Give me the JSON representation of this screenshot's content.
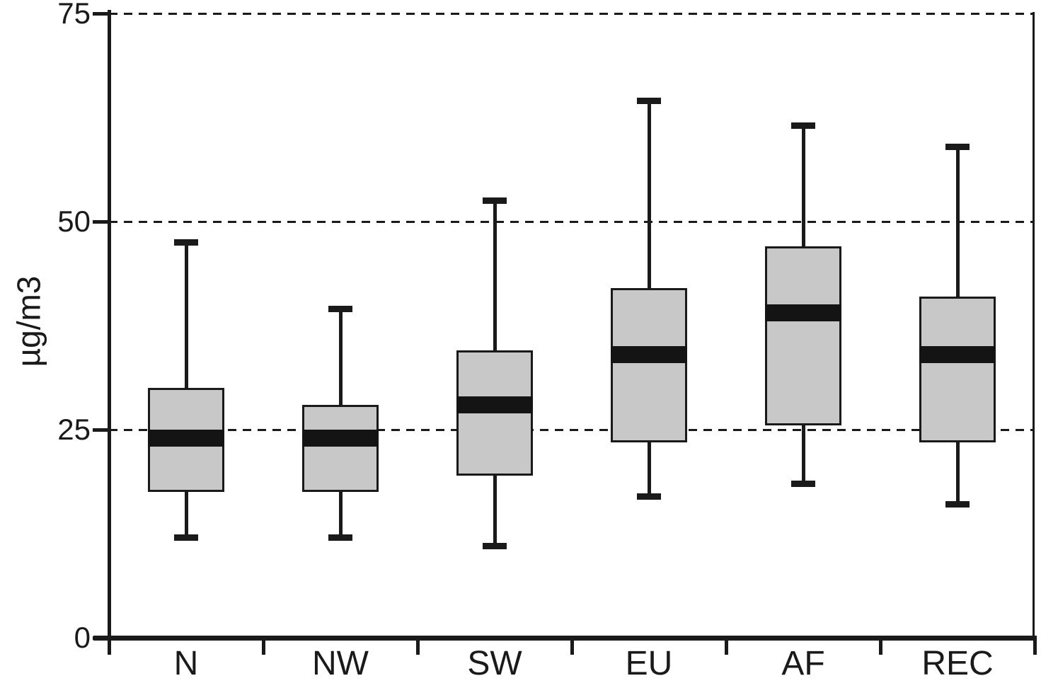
{
  "chart_data": {
    "type": "boxplot",
    "title": "",
    "xlabel": "",
    "ylabel": "µg/m3",
    "categories": [
      "N",
      "NW",
      "SW",
      "EU",
      "AF",
      "REC"
    ],
    "series": [
      {
        "name": "N",
        "whisker_low": 12,
        "q1": 17.5,
        "median": 24,
        "q3": 30,
        "whisker_high": 47.5
      },
      {
        "name": "NW",
        "whisker_low": 12,
        "q1": 17.5,
        "median": 24,
        "q3": 28,
        "whisker_high": 39.5
      },
      {
        "name": "SW",
        "whisker_low": 11,
        "q1": 19.5,
        "median": 28,
        "q3": 34.5,
        "whisker_high": 52.5
      },
      {
        "name": "EU",
        "whisker_low": 17,
        "q1": 23.5,
        "median": 34,
        "q3": 42,
        "whisker_high": 64.5
      },
      {
        "name": "AF",
        "whisker_low": 18.5,
        "q1": 25.5,
        "median": 39,
        "q3": 47,
        "whisker_high": 61.5
      },
      {
        "name": "REC",
        "whisker_low": 16,
        "q1": 23.5,
        "median": 34,
        "q3": 41,
        "whisker_high": 59
      }
    ],
    "ylim": [
      0,
      75
    ],
    "yticks": [
      0,
      25,
      50,
      75
    ],
    "gridlines": {
      "style": "dashed",
      "at": [
        25,
        50,
        75
      ]
    },
    "legend": "none"
  },
  "colors": {
    "box_fill": "#c8c8c8",
    "stroke": "#1a1a1a",
    "median": "#141414",
    "background": "#ffffff"
  }
}
